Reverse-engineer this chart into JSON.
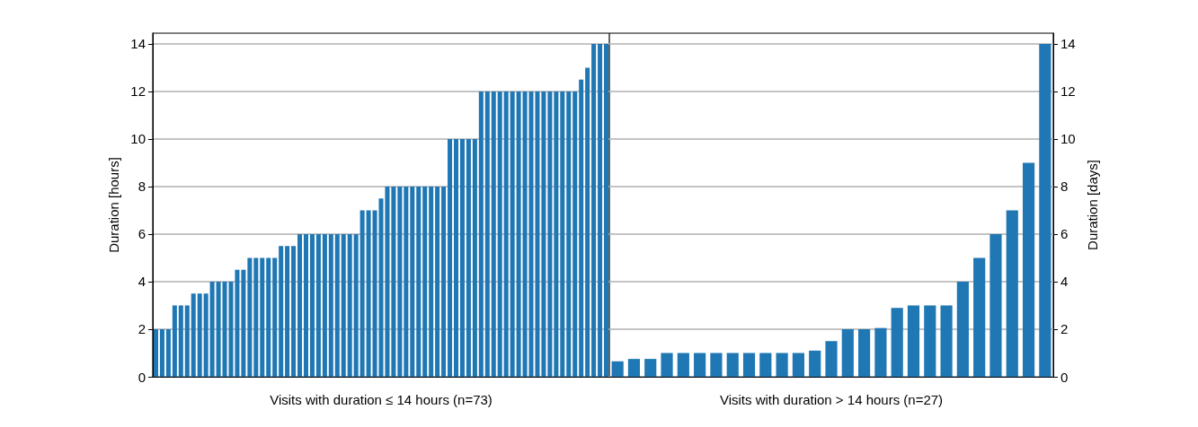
{
  "chart_data": [
    {
      "type": "bar",
      "xlabel": "Visits with duration ≤ 14 hours (n=73)",
      "ylabel": "Duration [hours]",
      "color": "#1f77b4",
      "categories": [
        null,
        null,
        null,
        null,
        null,
        null,
        null,
        null,
        null,
        null,
        null,
        null,
        null,
        null,
        null,
        null,
        null,
        null,
        null,
        null,
        null,
        null,
        null,
        null,
        null,
        null,
        null,
        null,
        null,
        null,
        null,
        null,
        null,
        null,
        null,
        null,
        null,
        null,
        null,
        null,
        null,
        null,
        null,
        null,
        null,
        null,
        null,
        null,
        null,
        null,
        null,
        null,
        null,
        null,
        null,
        null,
        null,
        null,
        null,
        null,
        null,
        null,
        null,
        null,
        null,
        null,
        null,
        null,
        null,
        null,
        null,
        null,
        null
      ],
      "values": [
        2,
        2,
        2,
        3,
        3,
        3,
        3.5,
        3.5,
        3.5,
        4,
        4,
        4,
        4,
        4.5,
        4.5,
        5,
        5,
        5,
        5,
        5,
        5.5,
        5.5,
        5.5,
        6,
        6,
        6,
        6,
        6,
        6,
        6,
        6,
        6,
        6,
        7,
        7,
        7,
        7.5,
        8,
        8,
        8,
        8,
        8,
        8,
        8,
        8,
        8,
        8,
        10,
        10,
        10,
        10,
        10,
        12,
        12,
        12,
        12,
        12,
        12,
        12,
        12,
        12,
        12,
        12,
        12,
        12,
        12,
        12,
        12,
        12.5,
        13,
        14,
        14,
        14
      ],
      "ylim": [
        0,
        14.45
      ],
      "yticks": [
        0,
        2,
        4,
        6,
        8,
        10,
        12,
        14
      ],
      "grid": "y",
      "tick_labels": "y"
    },
    {
      "type": "bar",
      "xlabel": "Visits with duration > 14 hours (n=27)",
      "ylabel": "Duration [days]",
      "color": "#1f77b4",
      "categories": [
        null,
        null,
        null,
        null,
        null,
        null,
        null,
        null,
        null,
        null,
        null,
        null,
        null,
        null,
        null,
        null,
        null,
        null,
        null,
        null,
        null,
        null,
        null,
        null,
        null,
        null,
        null
      ],
      "values": [
        0.65,
        0.75,
        0.75,
        1,
        1,
        1,
        1,
        1,
        1,
        1,
        1,
        1,
        1.1,
        1.5,
        2,
        2,
        2.05,
        2.9,
        3,
        3,
        3,
        4,
        5,
        6,
        7,
        9,
        14
      ],
      "ylim": [
        0,
        14.45
      ],
      "yticks": [
        0,
        2,
        4,
        6,
        8,
        10,
        12,
        14
      ],
      "grid": "y",
      "tick_labels": "y"
    }
  ]
}
